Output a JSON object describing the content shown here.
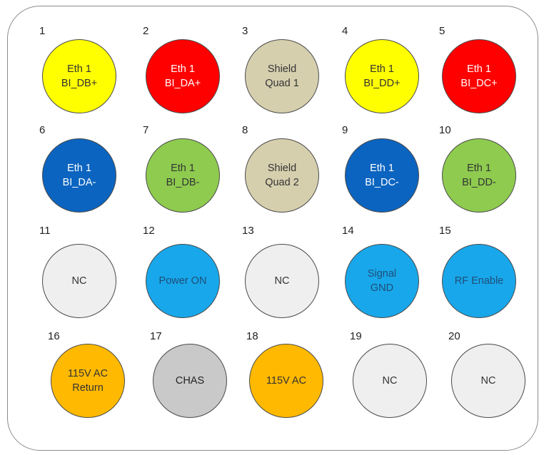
{
  "pins": [
    {
      "num": "1",
      "lines": [
        "Eth 1",
        "BI_DB+"
      ],
      "color": "#ffff00",
      "text_color": "#333333"
    },
    {
      "num": "2",
      "lines": [
        "Eth 1",
        "BI_DA+"
      ],
      "color": "#ff0000",
      "text_color": "#ffffff"
    },
    {
      "num": "3",
      "lines": [
        "Shield",
        "Quad 1"
      ],
      "color": "#d6cfae",
      "text_color": "#333333"
    },
    {
      "num": "4",
      "lines": [
        "Eth 1",
        "BI_DD+"
      ],
      "color": "#ffff00",
      "text_color": "#333333"
    },
    {
      "num": "5",
      "lines": [
        "Eth 1",
        "BI_DC+"
      ],
      "color": "#ff0000",
      "text_color": "#ffffff"
    },
    {
      "num": "6",
      "lines": [
        "Eth 1",
        "BI_DA-"
      ],
      "color": "#0b64c0",
      "text_color": "#ffffff"
    },
    {
      "num": "7",
      "lines": [
        "Eth 1",
        "BI_DB-"
      ],
      "color": "#8ecb4f",
      "text_color": "#333333"
    },
    {
      "num": "8",
      "lines": [
        "Shield",
        "Quad 2"
      ],
      "color": "#d6cfae",
      "text_color": "#333333"
    },
    {
      "num": "9",
      "lines": [
        "Eth 1",
        "BI_DC-"
      ],
      "color": "#0b64c0",
      "text_color": "#ffffff"
    },
    {
      "num": "10",
      "lines": [
        "Eth 1",
        "BI_DD-"
      ],
      "color": "#8ecb4f",
      "text_color": "#333333"
    },
    {
      "num": "11",
      "lines": [
        "NC"
      ],
      "color": "#efefef",
      "text_color": "#333333"
    },
    {
      "num": "12",
      "lines": [
        "Power ON"
      ],
      "color": "#18a7ea",
      "text_color": "#1f4e79"
    },
    {
      "num": "13",
      "lines": [
        "NC"
      ],
      "color": "#efefef",
      "text_color": "#333333"
    },
    {
      "num": "14",
      "lines": [
        "Signal",
        "GND"
      ],
      "color": "#18a7ea",
      "text_color": "#1f4e79"
    },
    {
      "num": "15",
      "lines": [
        "RF Enable"
      ],
      "color": "#18a7ea",
      "text_color": "#1f4e79"
    },
    {
      "num": "16",
      "lines": [
        "115V AC",
        "Return"
      ],
      "color": "#ffb900",
      "text_color": "#333333"
    },
    {
      "num": "17",
      "lines": [
        "CHAS"
      ],
      "color": "#c9c9c9",
      "text_color": "#222222"
    },
    {
      "num": "18",
      "lines": [
        "115V AC"
      ],
      "color": "#ffb900",
      "text_color": "#333333"
    },
    {
      "num": "19",
      "lines": [
        "NC"
      ],
      "color": "#efefef",
      "text_color": "#333333"
    },
    {
      "num": "20",
      "lines": [
        "NC"
      ],
      "color": "#efefef",
      "text_color": "#333333"
    }
  ]
}
